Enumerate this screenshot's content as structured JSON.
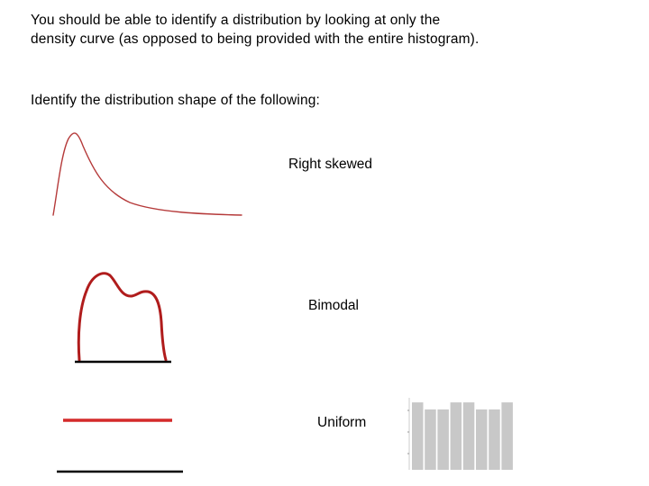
{
  "intro_text": "You should be able to identify a distribution by looking at only the density curve (as opposed to being provided with the entire histogram).",
  "prompt_text": "Identify the distribution shape of the following:",
  "items": [
    {
      "answer": "Right skewed",
      "curve_color": "#b53a3a"
    },
    {
      "answer": "Bimodal",
      "curve_color": "#b01c1c",
      "baseline_color": "#000000"
    },
    {
      "answer": "Uniform",
      "curve_color": "#d42a2a",
      "baseline_color": "#000000"
    }
  ],
  "histogram": {
    "bar_color": "#c8c8c8",
    "bar_heights": [
      0.96,
      0.86,
      0.86,
      0.96,
      0.96,
      0.86,
      0.86,
      0.96
    ]
  }
}
